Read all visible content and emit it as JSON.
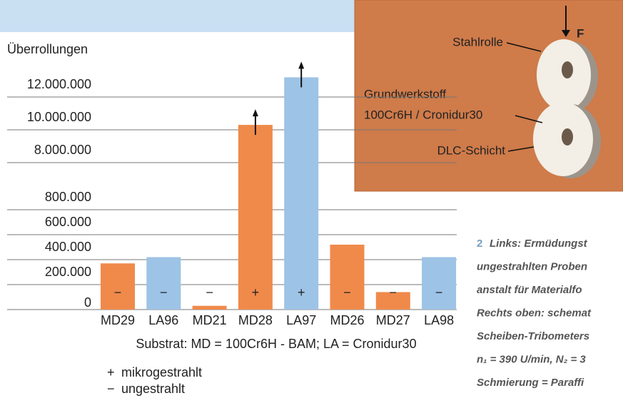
{
  "chart_data": {
    "type": "bar",
    "y_label": "Überrollungen",
    "x_label": "Substrat: MD = 100Cr6H - BAM; LA = Cronidur30",
    "categories": [
      "MD29",
      "LA96",
      "MD21",
      "MD28",
      "LA97",
      "MD26",
      "MD27",
      "LA98"
    ],
    "values": [
      370000,
      420000,
      30000,
      10300000,
      13200000,
      520000,
      140000,
      420000
    ],
    "colors": [
      "#f08a4b",
      "#9dc3e6",
      "#f08a4b",
      "#f08a4b",
      "#9dc3e6",
      "#f08a4b",
      "#f08a4b",
      "#9dc3e6"
    ],
    "markers": [
      "−",
      "−",
      "−",
      "+",
      "+",
      "−",
      "−",
      "−"
    ],
    "arrows": [
      false,
      false,
      false,
      true,
      true,
      false,
      false,
      false
    ],
    "axis_break": {
      "lower": [
        0,
        800000
      ],
      "upper": [
        8000000,
        12000000
      ]
    },
    "yticks": [
      0,
      {
        "value": 200000,
        "label": "200.000"
      },
      {
        "value": 400000,
        "label": "400.000"
      },
      {
        "value": 600000,
        "label": "600.000"
      },
      {
        "value": 800000,
        "label": "800.000"
      },
      {
        "value": 8000000,
        "label": "8.000.000"
      },
      {
        "value": 10000000,
        "label": "10.000.000"
      },
      {
        "value": 12000000,
        "label": "12.000.000"
      }
    ],
    "grid": true,
    "legend": [
      {
        "symbol": "+",
        "label": "mikrogestrahlt"
      },
      {
        "symbol": "−",
        "label": "ungestrahlt"
      }
    ]
  },
  "inset": {
    "labels": [
      "Stahlrolle",
      "F",
      "Grundwerkstoff",
      "100Cr6H / Cronidur30",
      "DLC-Schicht"
    ]
  },
  "caption": {
    "number": "2",
    "lines": [
      "Links: Ermüdungst",
      "ungestrahlten Proben",
      "anstalt für Materialfo",
      "Rechts oben: schemat",
      "Scheiben-Tribometers",
      "n₁ = 390 U/min, N₂ = 3",
      "Schmierung = Paraffi"
    ]
  }
}
